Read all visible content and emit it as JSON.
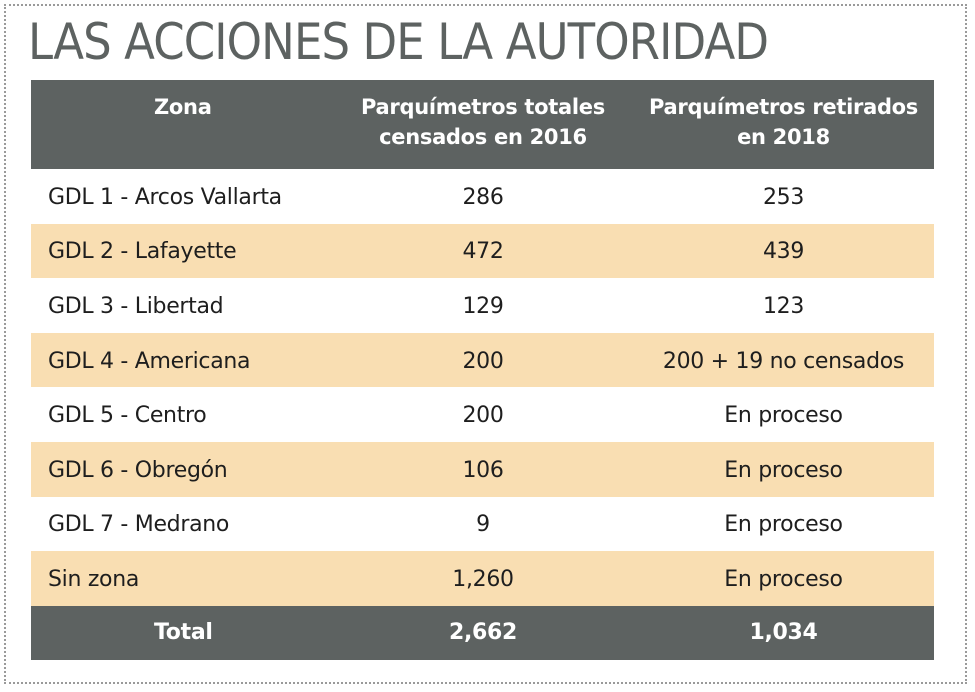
{
  "title": "LAS ACCIONES DE LA AUTORIDAD",
  "table": {
    "headers": {
      "zona": "Zona",
      "totales_line1": "Parquímetros totales",
      "totales_line2": "censados en 2016",
      "retirados_line1": "Parquímetros retirados",
      "retirados_line2": "en 2018"
    },
    "rows": [
      {
        "zona": "GDL 1 - Arcos Vallarta",
        "totales": "286",
        "retirados": "253"
      },
      {
        "zona": "GDL 2 - Lafayette",
        "totales": "472",
        "retirados": "439"
      },
      {
        "zona": "GDL 3 - Libertad",
        "totales": "129",
        "retirados": "123"
      },
      {
        "zona": "GDL 4 - Americana",
        "totales": "200",
        "retirados": "200 + 19 no censados"
      },
      {
        "zona": "GDL 5 - Centro",
        "totales": "200",
        "retirados": "En proceso"
      },
      {
        "zona": "GDL 6 - Obregón",
        "totales": "106",
        "retirados": "En proceso"
      },
      {
        "zona": "GDL 7 - Medrano",
        "totales": "9",
        "retirados": "En proceso"
      },
      {
        "zona": "Sin zona",
        "totales": "1,260",
        "retirados": "En proceso"
      }
    ],
    "total": {
      "label": "Total",
      "totales": "2,662",
      "retirados": "1,034"
    }
  },
  "colors": {
    "header_bg": "#5d6261",
    "stripe": "#f9deb2",
    "title": "#5d6261"
  }
}
